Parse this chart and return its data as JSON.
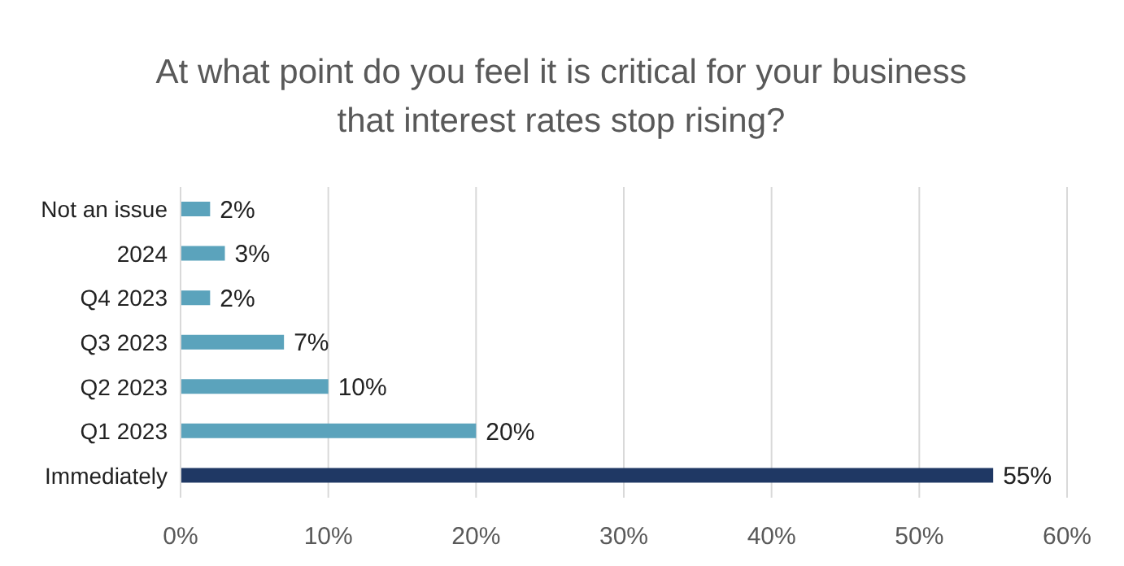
{
  "chart_data": {
    "type": "bar",
    "orientation": "horizontal",
    "title": "At what point do you feel it is critical for your business that interest rates stop rising?",
    "categories": [
      "Not an issue",
      "2024",
      "Q4 2023",
      "Q3 2023",
      "Q2 2023",
      "Q1 2023",
      "Immediately"
    ],
    "values": [
      2,
      3,
      2,
      7,
      10,
      20,
      55
    ],
    "colors": [
      "#5ba3bc",
      "#5ba3bc",
      "#5ba3bc",
      "#5ba3bc",
      "#5ba3bc",
      "#5ba3bc",
      "#1f3864"
    ],
    "value_labels": [
      "2%",
      "3%",
      "2%",
      "7%",
      "10%",
      "20%",
      "55%"
    ],
    "xlim": [
      0,
      60
    ],
    "xticks": [
      {
        "value": 0,
        "label": "0%"
      },
      {
        "value": 10,
        "label": "10%"
      },
      {
        "value": 20,
        "label": "20%"
      },
      {
        "value": 30,
        "label": "30%"
      },
      {
        "value": 40,
        "label": "40%"
      },
      {
        "value": 50,
        "label": "50%"
      },
      {
        "value": 60,
        "label": "60%"
      }
    ],
    "grid": "x",
    "legend": false
  }
}
